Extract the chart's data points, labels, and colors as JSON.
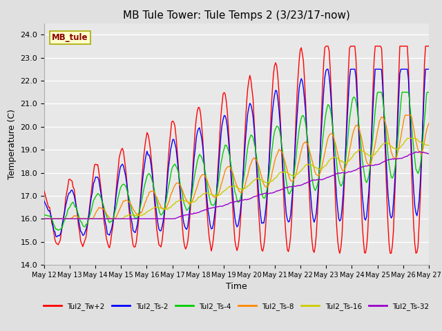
{
  "title": "MB Tule Tower: Tule Temps 2 (3/23/17-now)",
  "xlabel": "Time",
  "ylabel": "Temperature (C)",
  "ylim": [
    14.0,
    24.5
  ],
  "yticks": [
    14.0,
    15.0,
    16.0,
    17.0,
    18.0,
    19.0,
    20.0,
    21.0,
    22.0,
    23.0,
    24.0
  ],
  "background_color": "#e0e0e0",
  "plot_bg_color": "#e8e8e8",
  "grid_color": "#ffffff",
  "station_label": "MB_tule",
  "station_label_color": "#8b0000",
  "station_box_color": "#ffffcc",
  "series_colors": {
    "Tul2_Tw+2": "#ff0000",
    "Tul2_Ts-2": "#0000ff",
    "Tul2_Ts-4": "#00cc00",
    "Tul2_Ts-8": "#ff8800",
    "Tul2_Ts-16": "#cccc00",
    "Tul2_Ts-32": "#9900cc"
  },
  "x_labels": [
    "May 12",
    "May 13",
    "May 14",
    "May 15",
    "May 16",
    "May 17",
    "May 18",
    "May 19",
    "May 20",
    "May 21",
    "May 22",
    "May 23",
    "May 24",
    "May 25",
    "May 26",
    "May 27"
  ]
}
